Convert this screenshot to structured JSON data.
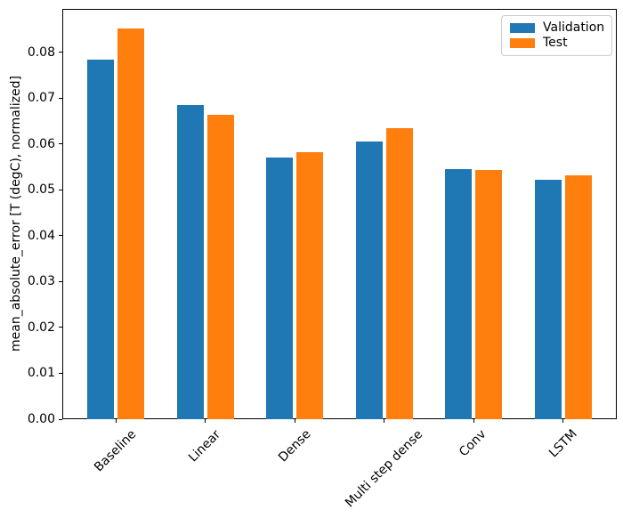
{
  "chart_data": {
    "type": "bar",
    "title": "",
    "xlabel": "",
    "ylabel": "mean_absolute_error [T (degC), normalized]",
    "categories": [
      "Baseline",
      "Linear",
      "Dense",
      "Multi step dense",
      "Conv",
      "LSTM"
    ],
    "series": [
      {
        "name": "Validation",
        "color": "#1f77b4",
        "values": [
          0.0785,
          0.0686,
          0.0571,
          0.0606,
          0.0545,
          0.0522
        ]
      },
      {
        "name": "Test",
        "color": "#ff7f0e",
        "values": [
          0.0852,
          0.0664,
          0.0583,
          0.0634,
          0.0543,
          0.0532
        ]
      }
    ],
    "ylim": [
      0,
      0.0895
    ],
    "xlim": [
      -0.6,
      5.6
    ],
    "ytick_values": [
      0.0,
      0.01,
      0.02,
      0.03,
      0.04,
      0.05,
      0.06,
      0.07,
      0.08
    ],
    "ytick_labels": [
      "0.00",
      "0.01",
      "0.02",
      "0.03",
      "0.04",
      "0.05",
      "0.06",
      "0.07",
      "0.08"
    ],
    "bar_width_units": 0.3,
    "bar_offset_units": 0.17,
    "xtick_rotation_deg": 45,
    "legend_position": "upper right",
    "grid": false,
    "background": "#ffffff"
  }
}
